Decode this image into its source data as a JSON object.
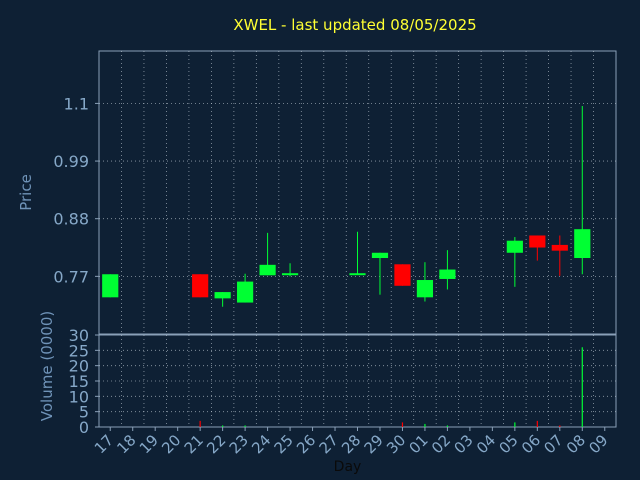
{
  "title": "XWEL - last updated 08/05/2025",
  "colors": {
    "background": "#0e2034",
    "plot_border": "#8aa0b8",
    "grid": "#c8d2dc",
    "title": "#ffff33",
    "axis_label": "#6f93b8",
    "tick_label": "#86a8c8",
    "up": "#00ff33",
    "down": "#ff0000"
  },
  "chart_data": [
    {
      "type": "candlestick",
      "title": "XWEL - last updated 08/05/2025",
      "ylabel": "Price",
      "ylim": [
        0.66,
        1.2
      ],
      "yticks": [
        0.77,
        0.88,
        0.99,
        1.1
      ],
      "ytick_labels": [
        "0.77",
        "0.88",
        "0.99",
        "1.1"
      ],
      "grid": true,
      "candles": [
        {
          "day": "17",
          "open": 0.73,
          "high": 0.774,
          "low": 0.73,
          "close": 0.774
        },
        {
          "day": "21",
          "open": 0.774,
          "high": 0.774,
          "low": 0.73,
          "close": 0.73
        },
        {
          "day": "22",
          "open": 0.728,
          "high": 0.74,
          "low": 0.712,
          "close": 0.74
        },
        {
          "day": "23",
          "open": 0.72,
          "high": 0.775,
          "low": 0.72,
          "close": 0.76
        },
        {
          "day": "24",
          "open": 0.772,
          "high": 0.853,
          "low": 0.772,
          "close": 0.792
        },
        {
          "day": "25",
          "open": 0.773,
          "high": 0.795,
          "low": 0.77,
          "close": 0.776
        },
        {
          "day": "28",
          "open": 0.773,
          "high": 0.855,
          "low": 0.773,
          "close": 0.776
        },
        {
          "day": "29",
          "open": 0.805,
          "high": 0.815,
          "low": 0.735,
          "close": 0.815
        },
        {
          "day": "30",
          "open": 0.793,
          "high": 0.793,
          "low": 0.752,
          "close": 0.752
        },
        {
          "day": "01",
          "open": 0.73,
          "high": 0.797,
          "low": 0.722,
          "close": 0.763
        },
        {
          "day": "02",
          "open": 0.765,
          "high": 0.82,
          "low": 0.745,
          "close": 0.783
        },
        {
          "day": "05",
          "open": 0.815,
          "high": 0.845,
          "low": 0.75,
          "close": 0.838
        },
        {
          "day": "06",
          "open": 0.848,
          "high": 0.848,
          "low": 0.8,
          "close": 0.825
        },
        {
          "day": "07",
          "open": 0.83,
          "high": 0.848,
          "low": 0.771,
          "close": 0.819
        },
        {
          "day": "08",
          "open": 0.805,
          "high": 1.095,
          "low": 0.774,
          "close": 0.86
        }
      ]
    },
    {
      "type": "bar",
      "xlabel": "Day",
      "ylabel": "Volume (0000)",
      "ylim": [
        0,
        30
      ],
      "yticks": [
        0,
        5,
        10,
        15,
        20,
        25,
        30
      ],
      "ytick_labels": [
        "0",
        "5",
        "10",
        "15",
        "20",
        "25",
        "30"
      ],
      "categories": [
        "17",
        "18",
        "19",
        "20",
        "21",
        "22",
        "23",
        "24",
        "25",
        "26",
        "27",
        "28",
        "29",
        "30",
        "01",
        "02",
        "03",
        "04",
        "05",
        "06",
        "07",
        "08",
        "09"
      ],
      "bars": [
        {
          "day": "21",
          "volume": 2,
          "direction": "down"
        },
        {
          "day": "22",
          "volume": 0.5,
          "direction": "up"
        },
        {
          "day": "23",
          "volume": 0.5,
          "direction": "up"
        },
        {
          "day": "30",
          "volume": 1.5,
          "direction": "down"
        },
        {
          "day": "01",
          "volume": 1,
          "direction": "up"
        },
        {
          "day": "02",
          "volume": 0.5,
          "direction": "up"
        },
        {
          "day": "05",
          "volume": 1.5,
          "direction": "up"
        },
        {
          "day": "06",
          "volume": 2,
          "direction": "down"
        },
        {
          "day": "07",
          "volume": 0.5,
          "direction": "down"
        },
        {
          "day": "08",
          "volume": 26,
          "direction": "up"
        }
      ]
    }
  ]
}
